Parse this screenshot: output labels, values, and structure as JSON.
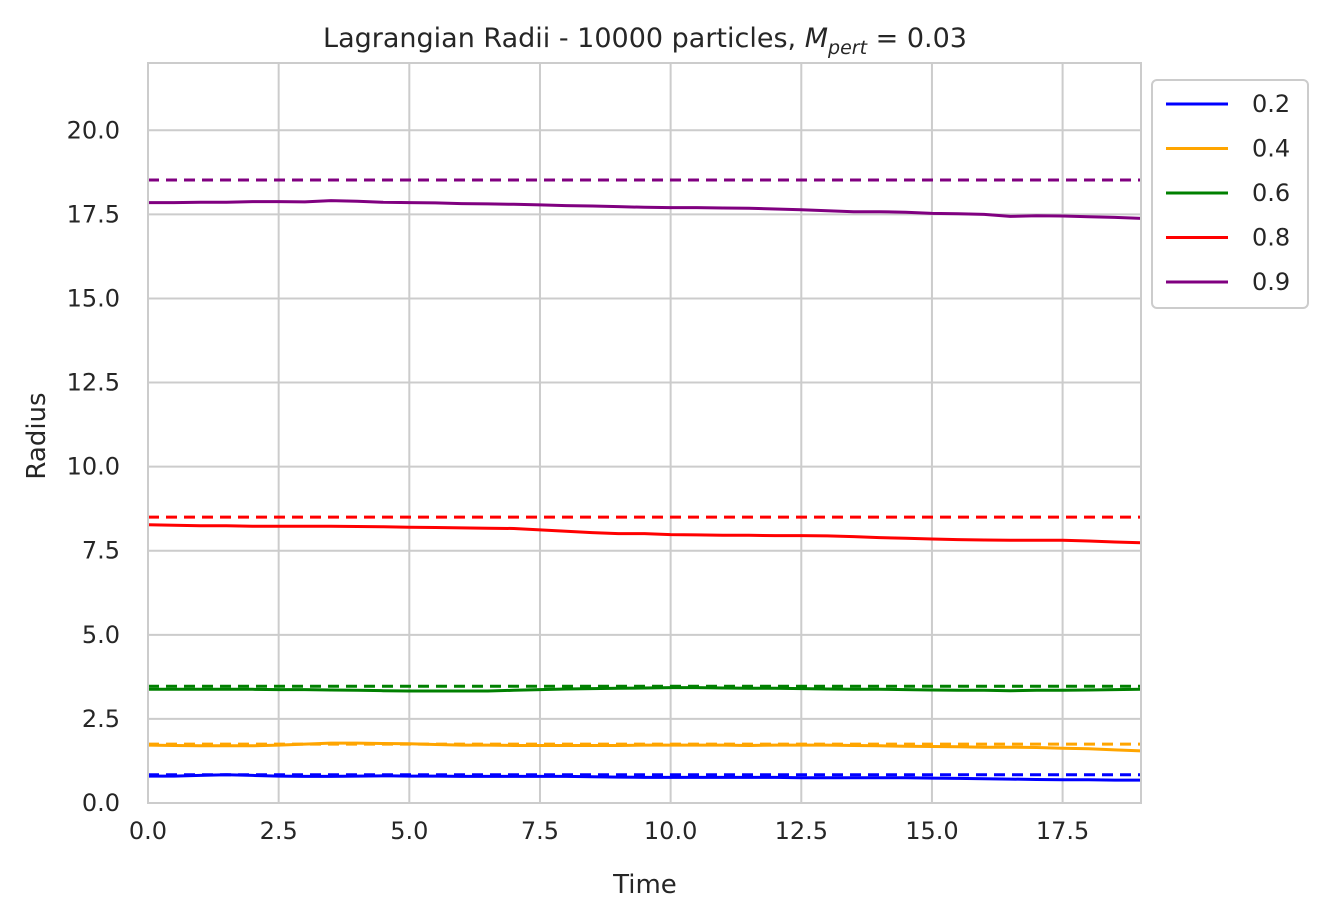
{
  "chart_data": {
    "type": "line",
    "title": "Lagrangian Radii - 10000 particles, ",
    "title_math_symbol": "M",
    "title_math_subscript": "pert",
    "title_tail": " = 0.03",
    "xlabel": "Time",
    "ylabel": "Radius",
    "xlim": [
      0,
      19
    ],
    "ylim": [
      0,
      22
    ],
    "xticks": [
      "0.0",
      "2.5",
      "5.0",
      "7.5",
      "10.0",
      "12.5",
      "15.0",
      "17.5"
    ],
    "yticks": [
      "0.0",
      "2.5",
      "5.0",
      "7.5",
      "10.0",
      "12.5",
      "15.0",
      "17.5",
      "20.0"
    ],
    "grid": true,
    "legend_position": "outside-top-right",
    "x": [
      0,
      0.5,
      1,
      1.5,
      2,
      2.5,
      3,
      3.5,
      4,
      4.5,
      5,
      5.5,
      6,
      6.5,
      7,
      7.5,
      8,
      8.5,
      9,
      9.5,
      10,
      10.5,
      11,
      11.5,
      12,
      12.5,
      13,
      13.5,
      14,
      14.5,
      15,
      15.5,
      16,
      16.5,
      17,
      17.5,
      18,
      18.5,
      19
    ],
    "series": [
      {
        "name": "0.2",
        "color": "#0000ff",
        "values": [
          0.8,
          0.8,
          0.82,
          0.84,
          0.82,
          0.8,
          0.79,
          0.79,
          0.8,
          0.81,
          0.8,
          0.8,
          0.79,
          0.79,
          0.79,
          0.79,
          0.79,
          0.78,
          0.77,
          0.76,
          0.76,
          0.76,
          0.76,
          0.76,
          0.76,
          0.75,
          0.75,
          0.75,
          0.75,
          0.75,
          0.74,
          0.73,
          0.72,
          0.71,
          0.7,
          0.69,
          0.69,
          0.68,
          0.68
        ],
        "reference": 0.84
      },
      {
        "name": "0.4",
        "color": "#ffa500",
        "values": [
          1.72,
          1.71,
          1.7,
          1.7,
          1.7,
          1.72,
          1.75,
          1.78,
          1.78,
          1.77,
          1.76,
          1.74,
          1.72,
          1.72,
          1.71,
          1.71,
          1.71,
          1.71,
          1.71,
          1.72,
          1.72,
          1.72,
          1.72,
          1.71,
          1.72,
          1.72,
          1.72,
          1.71,
          1.7,
          1.69,
          1.68,
          1.67,
          1.66,
          1.66,
          1.65,
          1.63,
          1.61,
          1.58,
          1.55
        ],
        "reference": 1.75
      },
      {
        "name": "0.6",
        "color": "#008000",
        "values": [
          3.38,
          3.38,
          3.38,
          3.38,
          3.38,
          3.37,
          3.37,
          3.36,
          3.35,
          3.34,
          3.33,
          3.33,
          3.33,
          3.33,
          3.35,
          3.37,
          3.39,
          3.4,
          3.41,
          3.42,
          3.43,
          3.43,
          3.42,
          3.41,
          3.41,
          3.4,
          3.39,
          3.38,
          3.38,
          3.37,
          3.36,
          3.35,
          3.35,
          3.34,
          3.35,
          3.35,
          3.36,
          3.37,
          3.38
        ],
        "reference": 3.47
      },
      {
        "name": "0.8",
        "color": "#ff0000",
        "values": [
          8.27,
          8.26,
          8.24,
          8.24,
          8.23,
          8.23,
          8.23,
          8.23,
          8.22,
          8.21,
          8.2,
          8.19,
          8.18,
          8.17,
          8.16,
          8.12,
          8.08,
          8.04,
          8.01,
          8.01,
          7.98,
          7.97,
          7.96,
          7.96,
          7.95,
          7.95,
          7.94,
          7.92,
          7.89,
          7.87,
          7.85,
          7.83,
          7.82,
          7.81,
          7.81,
          7.81,
          7.79,
          7.76,
          7.74
        ],
        "reference": 8.5
      },
      {
        "name": "0.9",
        "color": "#800080",
        "values": [
          17.85,
          17.85,
          17.86,
          17.86,
          17.88,
          17.88,
          17.87,
          17.91,
          17.89,
          17.86,
          17.85,
          17.84,
          17.82,
          17.81,
          17.8,
          17.78,
          17.76,
          17.75,
          17.73,
          17.71,
          17.7,
          17.7,
          17.69,
          17.68,
          17.66,
          17.64,
          17.61,
          17.58,
          17.58,
          17.56,
          17.53,
          17.52,
          17.5,
          17.44,
          17.46,
          17.45,
          17.43,
          17.41,
          17.38
        ],
        "reference": 18.52
      }
    ]
  }
}
